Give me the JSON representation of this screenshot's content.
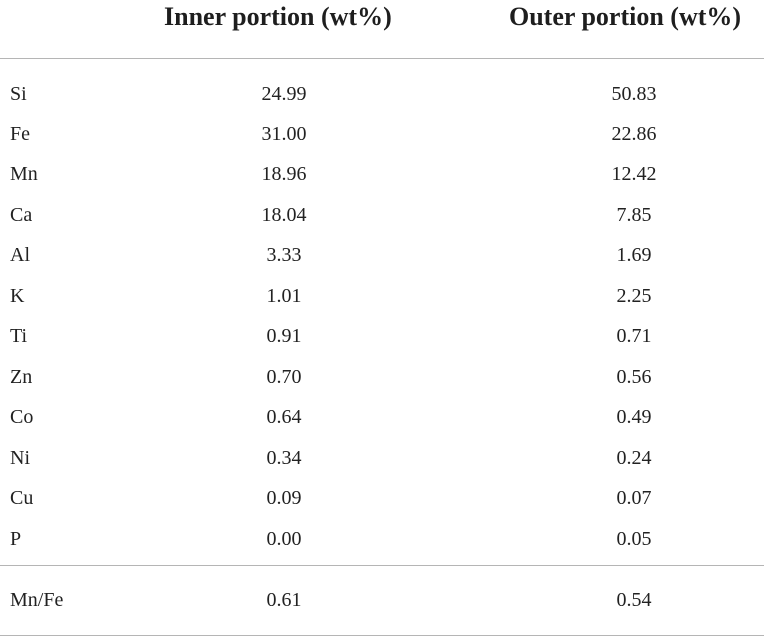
{
  "table": {
    "headers": {
      "element": "",
      "inner": "Inner portion (wt%)",
      "outer": "Outer portion (wt%)"
    },
    "rows": [
      {
        "element": "Si",
        "inner": "24.99",
        "outer": "50.83"
      },
      {
        "element": "Fe",
        "inner": "31.00",
        "outer": "22.86"
      },
      {
        "element": "Mn",
        "inner": "18.96",
        "outer": "12.42"
      },
      {
        "element": "Ca",
        "inner": "18.04",
        "outer": "7.85"
      },
      {
        "element": "Al",
        "inner": "3.33",
        "outer": "1.69"
      },
      {
        "element": "K",
        "inner": "1.01",
        "outer": "2.25"
      },
      {
        "element": "Ti",
        "inner": "0.91",
        "outer": "0.71"
      },
      {
        "element": "Zn",
        "inner": "0.70",
        "outer": "0.56"
      },
      {
        "element": "Co",
        "inner": "0.64",
        "outer": "0.49"
      },
      {
        "element": "Ni",
        "inner": "0.34",
        "outer": "0.24"
      },
      {
        "element": "Cu",
        "inner": "0.09",
        "outer": "0.07"
      },
      {
        "element": "P",
        "inner": "0.00",
        "outer": "0.05"
      }
    ],
    "ratio_row": {
      "element": "Mn/Fe",
      "inner": "0.61",
      "outer": "0.54"
    }
  }
}
